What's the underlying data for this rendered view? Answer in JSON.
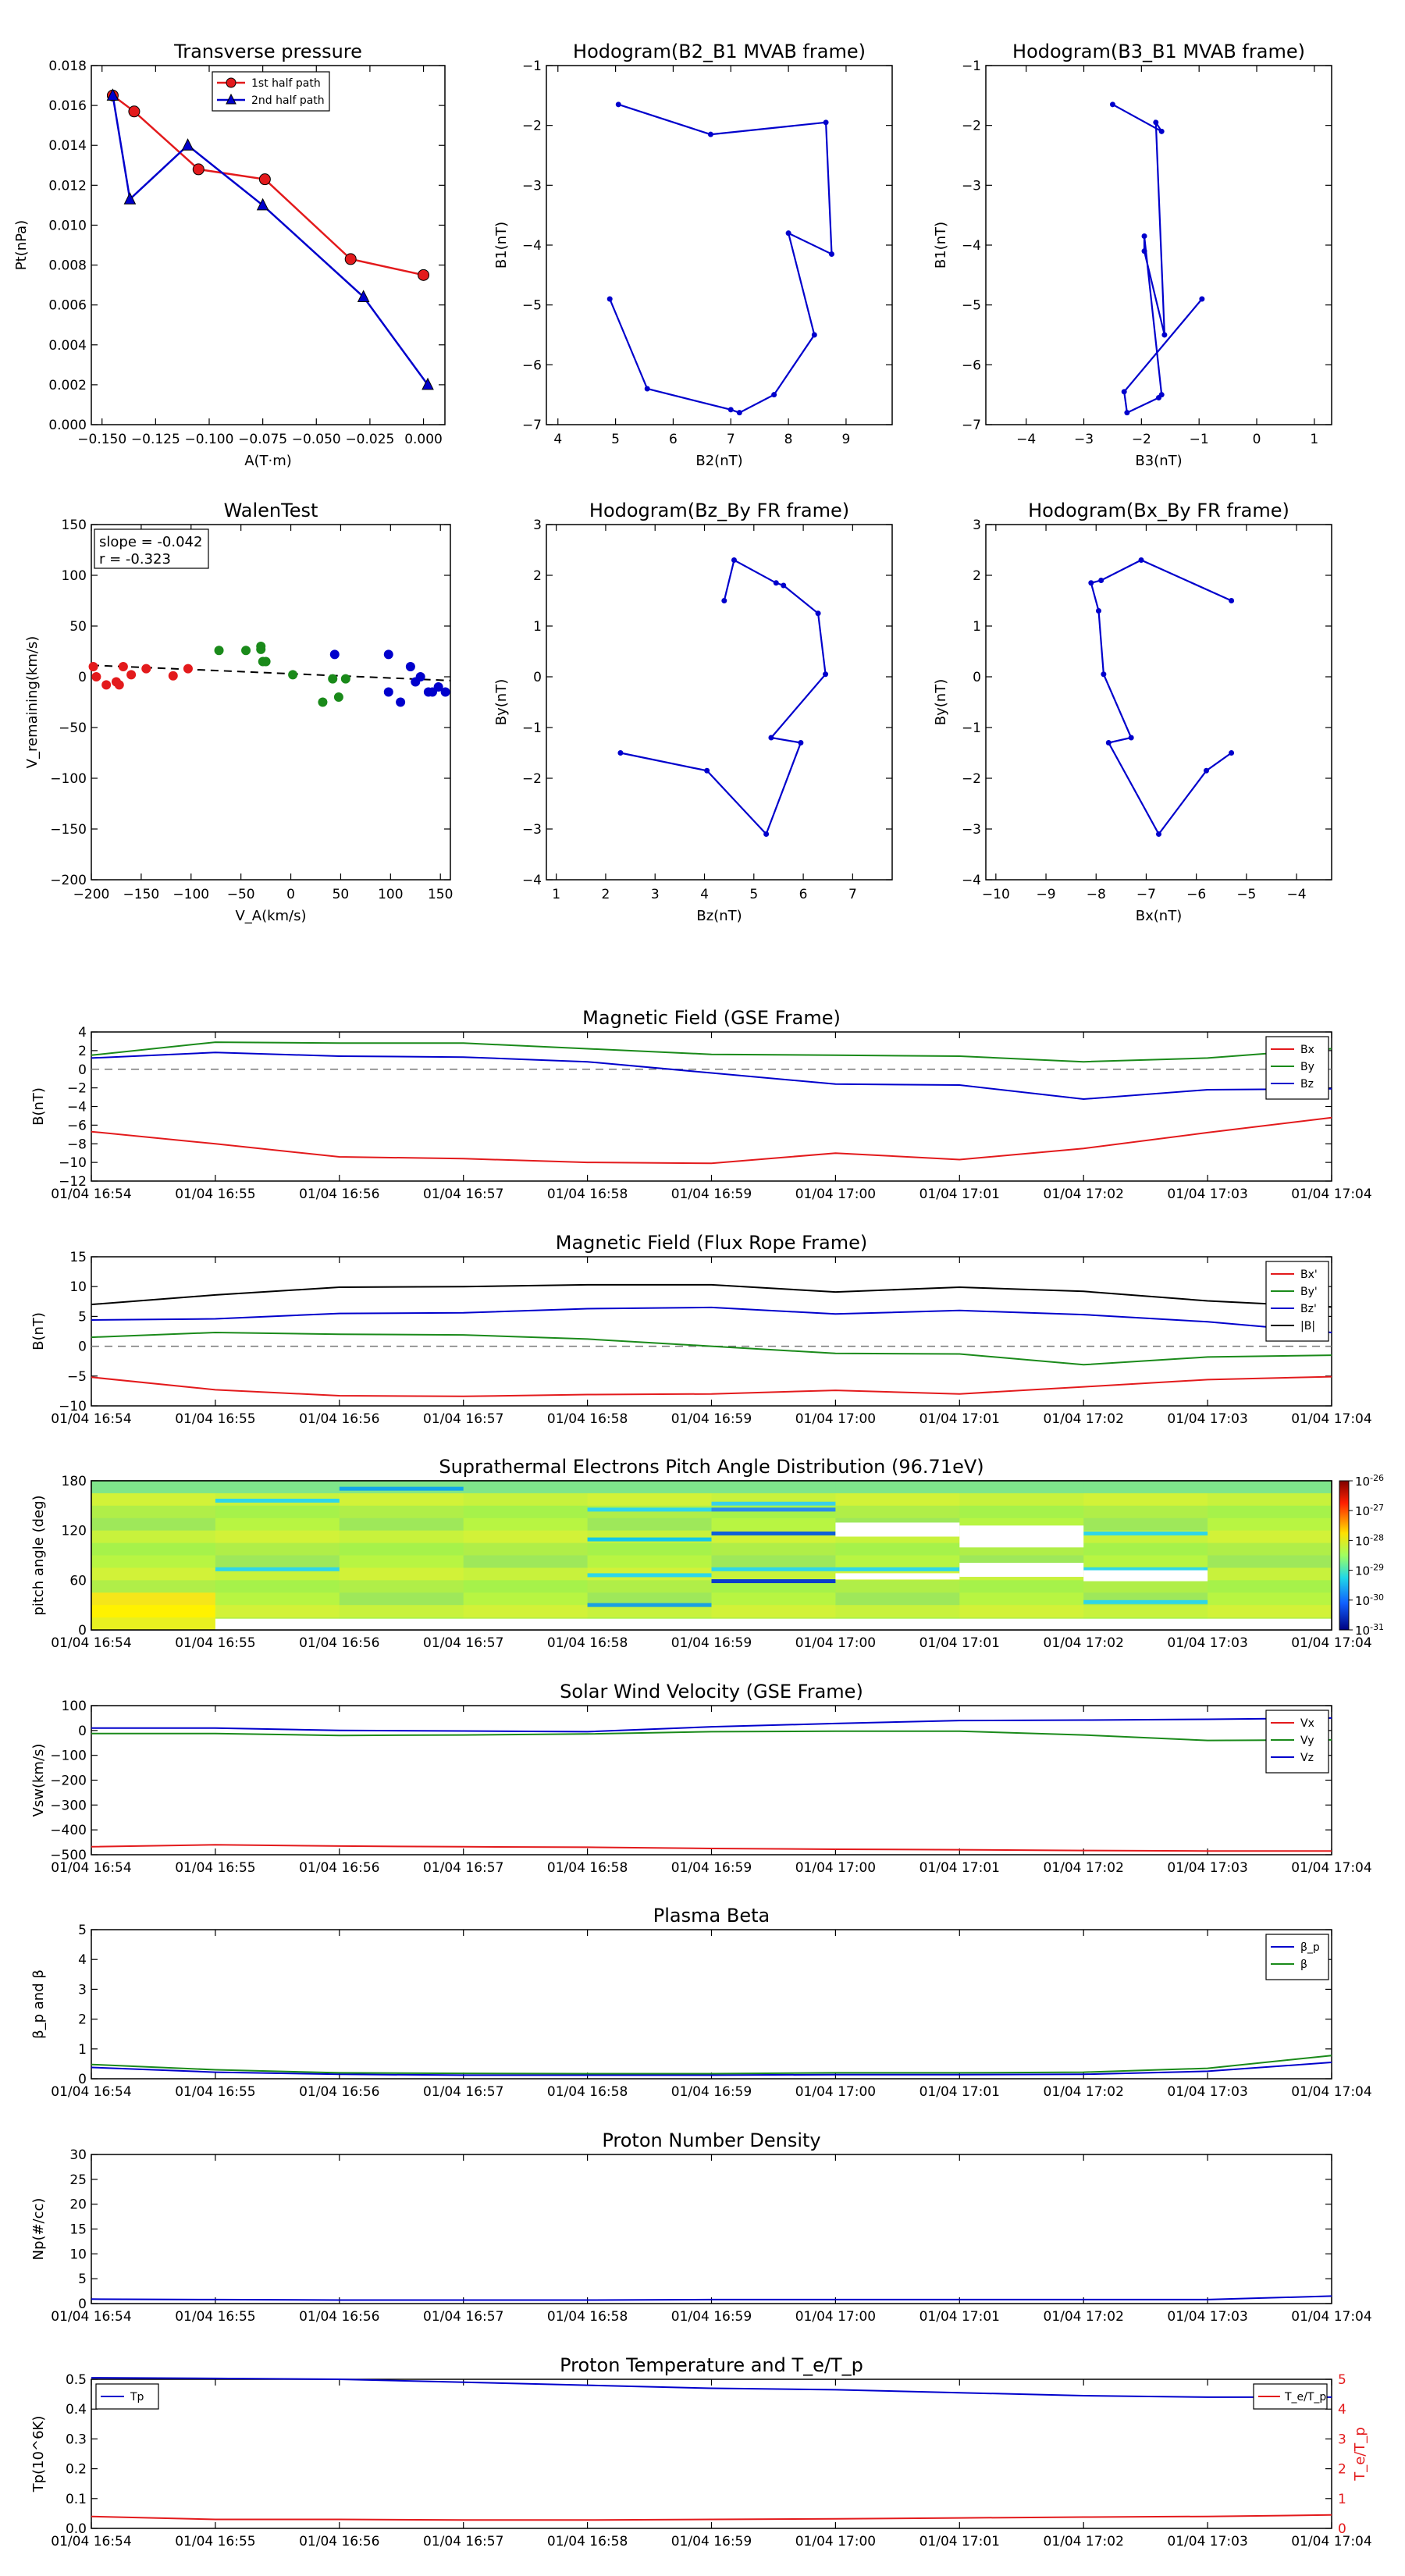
{
  "time_ticks": [
    "01/04 16:54",
    "01/04 16:55",
    "01/04 16:56",
    "01/04 16:57",
    "01/04 16:58",
    "01/04 16:59",
    "01/04 17:00",
    "01/04 17:01",
    "01/04 17:02",
    "01/04 17:03",
    "01/04 17:04"
  ],
  "chart_data": [
    {
      "id": "tp",
      "type": "line",
      "title": "Transverse pressure",
      "xlabel": "A(T·m)",
      "ylabel": "Pt(nPa)",
      "xlim": [
        -0.155,
        0.01
      ],
      "ylim": [
        0,
        0.018
      ],
      "xticks": [
        -0.15,
        -0.125,
        -0.1,
        -0.075,
        -0.05,
        -0.025,
        0
      ],
      "xtick_labels": [
        "−0.150",
        "−0.125",
        "−0.100",
        "−0.075",
        "−0.050",
        "−0.025",
        "0.000"
      ],
      "yticks": [
        0,
        0.002,
        0.004,
        0.006,
        0.008,
        0.01,
        0.012,
        0.014,
        0.016,
        0.018
      ],
      "ytick_labels": [
        "0.000",
        "0.002",
        "0.004",
        "0.006",
        "0.008",
        "0.010",
        "0.012",
        "0.014",
        "0.016",
        "0.018"
      ],
      "legend": "upper center",
      "series": [
        {
          "name": "1st half path",
          "color": "#e31a1c",
          "marker": "circle",
          "x": [
            -0.145,
            -0.135,
            -0.105,
            -0.074,
            -0.034,
            0.0
          ],
          "y": [
            0.0165,
            0.0157,
            0.0128,
            0.0123,
            0.0083,
            0.0075
          ]
        },
        {
          "name": "2nd half path",
          "color": "#0000cc",
          "marker": "triangle",
          "x": [
            -0.145,
            -0.137,
            -0.11,
            -0.075,
            -0.028,
            0.002
          ],
          "y": [
            0.0165,
            0.0113,
            0.014,
            0.011,
            0.0064,
            0.002
          ]
        }
      ]
    },
    {
      "id": "h1",
      "type": "line",
      "title": "Hodogram(B2_B1 MVAB frame)",
      "xlabel": "B2(nT)",
      "ylabel": "B1(nT)",
      "xlim": [
        3.8,
        9.8
      ],
      "ylim": [
        -7,
        -1
      ],
      "xticks": [
        4,
        5,
        6,
        7,
        8,
        9
      ],
      "xtick_labels": [
        "4",
        "5",
        "6",
        "7",
        "8",
        "9"
      ],
      "yticks": [
        -7,
        -6,
        -5,
        -4,
        -3,
        -2,
        -1
      ],
      "ytick_labels": [
        "−7",
        "−6",
        "−5",
        "−4",
        "−3",
        "−2",
        "−1"
      ],
      "series": [
        {
          "color": "#0000cc",
          "x": [
            5.05,
            6.65,
            8.65,
            8.75,
            8.0,
            8.45,
            7.75,
            7.15,
            7.0,
            5.55,
            4.9
          ],
          "y": [
            -1.65,
            -2.15,
            -1.95,
            -4.15,
            -3.8,
            -5.5,
            -6.5,
            -6.8,
            -6.75,
            -6.4,
            -4.9
          ]
        }
      ]
    },
    {
      "id": "h2",
      "type": "line",
      "title": "Hodogram(B3_B1 MVAB frame)",
      "xlabel": "B3(nT)",
      "ylabel": "B1(nT)",
      "xlim": [
        -4.7,
        1.3
      ],
      "ylim": [
        -7,
        -1
      ],
      "xticks": [
        -4,
        -3,
        -2,
        -1,
        0,
        1
      ],
      "xtick_labels": [
        "−4",
        "−3",
        "−2",
        "−1",
        "0",
        "1"
      ],
      "yticks": [
        -7,
        -6,
        -5,
        -4,
        -3,
        -2,
        -1
      ],
      "ytick_labels": [
        "−7",
        "−6",
        "−5",
        "−4",
        "−3",
        "−2",
        "−1"
      ],
      "series": [
        {
          "color": "#0000cc",
          "x": [
            -2.5,
            -1.65,
            -1.75,
            -1.6,
            -1.95,
            -1.95,
            -1.65,
            -1.7,
            -2.25,
            -2.3,
            -0.95
          ],
          "y": [
            -1.65,
            -2.1,
            -1.95,
            -5.5,
            -4.1,
            -3.85,
            -6.5,
            -6.55,
            -6.8,
            -6.45,
            -4.9
          ]
        }
      ]
    },
    {
      "id": "walen",
      "type": "scatter",
      "title": "WalenTest",
      "xlabel": "V_A(km/s)",
      "ylabel": "V_remaining(km/s)",
      "xlim": [
        -200,
        160
      ],
      "ylim": [
        -200,
        150
      ],
      "xticks": [
        -200,
        -150,
        -100,
        -50,
        0,
        50,
        100,
        150
      ],
      "xtick_labels": [
        "−200",
        "−150",
        "−100",
        "−50",
        "0",
        "50",
        "100",
        "150"
      ],
      "yticks": [
        -200,
        -150,
        -100,
        -50,
        0,
        50,
        100,
        150
      ],
      "ytick_labels": [
        "−200",
        "−150",
        "−100",
        "−50",
        "0",
        "50",
        "100",
        "150"
      ],
      "annotation": [
        "slope = -0.042",
        "r = -0.323"
      ],
      "fit_line": {
        "slope": -0.042,
        "intercept": 3
      },
      "series": [
        {
          "color": "#e31a1c",
          "x": [
            -198,
            -195,
            -185,
            -175,
            -172,
            -168,
            -160,
            -145,
            -118,
            -103
          ],
          "y": [
            10,
            0,
            -8,
            -5,
            -8,
            10,
            2,
            8,
            1,
            8
          ]
        },
        {
          "color": "#1a8a1a",
          "x": [
            -72,
            -45,
            -30,
            -30,
            -28,
            -25,
            2,
            32,
            42,
            48,
            55
          ],
          "y": [
            26,
            26,
            27,
            30,
            15,
            15,
            2,
            -25,
            -2,
            -20,
            -2
          ]
        },
        {
          "color": "#0000cc",
          "x": [
            44,
            98,
            98,
            110,
            120,
            125,
            130,
            138,
            142,
            148,
            155
          ],
          "y": [
            22,
            22,
            -15,
            -25,
            10,
            -5,
            0,
            -15,
            -15,
            -10,
            -15
          ]
        }
      ]
    },
    {
      "id": "h3",
      "type": "line",
      "title": "Hodogram(Bz_By FR frame)",
      "xlabel": "Bz(nT)",
      "ylabel": "By(nT)",
      "xlim": [
        0.8,
        7.8
      ],
      "ylim": [
        -4,
        3
      ],
      "xticks": [
        1,
        2,
        3,
        4,
        5,
        6,
        7
      ],
      "xtick_labels": [
        "1",
        "2",
        "3",
        "4",
        "5",
        "6",
        "7"
      ],
      "yticks": [
        -4,
        -3,
        -2,
        -1,
        0,
        1,
        2,
        3
      ],
      "ytick_labels": [
        "−4",
        "−3",
        "−2",
        "−1",
        "0",
        "1",
        "2",
        "3"
      ],
      "series": [
        {
          "color": "#0000cc",
          "x": [
            4.4,
            4.6,
            5.45,
            5.6,
            6.3,
            6.45,
            5.35,
            5.95,
            5.25,
            4.05,
            2.3
          ],
          "y": [
            1.5,
            2.3,
            1.85,
            1.8,
            1.25,
            0.05,
            -1.2,
            -1.3,
            -3.1,
            -1.85,
            -1.5
          ]
        }
      ]
    },
    {
      "id": "h4",
      "type": "line",
      "title": "Hodogram(Bx_By FR frame)",
      "xlabel": "Bx(nT)",
      "ylabel": "By(nT)",
      "xlim": [
        -10.2,
        -3.3
      ],
      "ylim": [
        -4,
        3
      ],
      "xticks": [
        -10,
        -9,
        -8,
        -7,
        -6,
        -5,
        -4
      ],
      "xtick_labels": [
        "−10",
        "−9",
        "−8",
        "−7",
        "−6",
        "−5",
        "−4"
      ],
      "yticks": [
        -4,
        -3,
        -2,
        -1,
        0,
        1,
        2,
        3
      ],
      "ytick_labels": [
        "−4",
        "−3",
        "−2",
        "−1",
        "0",
        "1",
        "2",
        "3"
      ],
      "series": [
        {
          "color": "#0000cc",
          "x": [
            -5.3,
            -7.1,
            -7.9,
            -8.1,
            -7.95,
            -7.85,
            -7.3,
            -7.75,
            -6.75,
            -5.8,
            -5.3
          ],
          "y": [
            1.5,
            2.3,
            1.9,
            1.85,
            1.3,
            0.05,
            -1.2,
            -1.3,
            -3.1,
            -1.85,
            -1.5
          ]
        }
      ]
    },
    {
      "id": "bgse",
      "type": "line",
      "title": "Magnetic Field (GSE Frame)",
      "ylabel": "B(nT)",
      "ylim": [
        -12,
        4
      ],
      "yticks": [
        -12,
        -10,
        -8,
        -6,
        -4,
        -2,
        0,
        2,
        4
      ],
      "ytick_labels": [
        "−12",
        "−10",
        "−8",
        "−6",
        "−4",
        "−2",
        "0",
        "2",
        "4"
      ],
      "zero_line": true,
      "legend": "right",
      "series": [
        {
          "name": "Bx",
          "color": "#e31a1c",
          "values": [
            -6.7,
            -8,
            -9.4,
            -9.6,
            -10,
            -10.1,
            -9,
            -9.7,
            -8.5,
            -6.8,
            -5.2
          ]
        },
        {
          "name": "By",
          "color": "#1a8a1a",
          "values": [
            1.5,
            2.9,
            2.8,
            2.8,
            2.2,
            1.6,
            1.5,
            1.4,
            0.8,
            1.2,
            2.2
          ]
        },
        {
          "name": "Bz",
          "color": "#0000cc",
          "values": [
            1.2,
            1.8,
            1.4,
            1.3,
            0.8,
            -0.4,
            -1.6,
            -1.7,
            -3.2,
            -2.2,
            -2.1
          ]
        }
      ]
    },
    {
      "id": "bfr",
      "type": "line",
      "title": "Magnetic Field (Flux Rope Frame)",
      "ylabel": "B(nT)",
      "ylim": [
        -10,
        15
      ],
      "yticks": [
        -10,
        -5,
        0,
        5,
        10,
        15
      ],
      "ytick_labels": [
        "−10",
        "−5",
        "0",
        "5",
        "10",
        "15"
      ],
      "zero_line": true,
      "legend": "right",
      "series": [
        {
          "name": "Bx'",
          "color": "#e31a1c",
          "values": [
            -5.2,
            -7.3,
            -8.3,
            -8.4,
            -8.1,
            -8,
            -7.4,
            -8,
            -6.8,
            -5.6,
            -5.1
          ]
        },
        {
          "name": "By'",
          "color": "#1a8a1a",
          "values": [
            1.5,
            2.3,
            2,
            1.9,
            1.2,
            0,
            -1.2,
            -1.3,
            -3.1,
            -1.8,
            -1.5
          ]
        },
        {
          "name": "Bz'",
          "color": "#0000cc",
          "values": [
            4.4,
            4.6,
            5.5,
            5.6,
            6.3,
            6.5,
            5.4,
            6,
            5.3,
            4.1,
            2.3
          ]
        },
        {
          "name": "|B|",
          "color": "#000000",
          "values": [
            7,
            8.6,
            9.9,
            10,
            10.3,
            10.3,
            9.1,
            9.9,
            9.2,
            7.6,
            6.6
          ]
        }
      ]
    },
    {
      "id": "pad",
      "type": "heatmap",
      "title": "Suprathermal Electrons Pitch Angle Distribution (96.71eV)",
      "ylabel": "pitch angle (deg)",
      "ylim": [
        0,
        180
      ],
      "yticks": [
        0,
        60,
        120,
        180
      ],
      "ytick_labels": [
        "0",
        "60",
        "120",
        "180"
      ],
      "colorbar_labels": [
        "10^-26",
        "10^-27",
        "10^-28",
        "10^-29",
        "10^-30",
        "10^-31"
      ]
    },
    {
      "id": "vsw",
      "type": "line",
      "title": "Solar Wind Velocity (GSE Frame)",
      "ylabel": "Vsw(km/s)",
      "ylim": [
        -500,
        100
      ],
      "yticks": [
        -500,
        -400,
        -300,
        -200,
        -100,
        0,
        100
      ],
      "ytick_labels": [
        "−500",
        "−400",
        "−300",
        "−200",
        "−100",
        "0",
        "100"
      ],
      "legend": "right",
      "series": [
        {
          "name": "Vx",
          "color": "#e31a1c",
          "values": [
            -468,
            -460,
            -465,
            -468,
            -470,
            -475,
            -478,
            -480,
            -483,
            -485,
            -485
          ]
        },
        {
          "name": "Vy",
          "color": "#1a8a1a",
          "values": [
            -12,
            -12,
            -20,
            -18,
            -14,
            -5,
            -3,
            -3,
            -18,
            -40,
            -38
          ]
        },
        {
          "name": "Vz",
          "color": "#0000cc",
          "values": [
            10,
            10,
            0,
            -2,
            -5,
            15,
            28,
            40,
            42,
            45,
            50
          ]
        }
      ]
    },
    {
      "id": "beta",
      "type": "line",
      "title": "Plasma Beta",
      "ylabel": "β_p and β",
      "ylim": [
        0,
        5
      ],
      "yticks": [
        0,
        1,
        2,
        3,
        4,
        5
      ],
      "ytick_labels": [
        "0",
        "1",
        "2",
        "3",
        "4",
        "5"
      ],
      "legend": "right",
      "series": [
        {
          "name": "β_p",
          "color": "#0000cc",
          "values": [
            0.38,
            0.22,
            0.15,
            0.12,
            0.12,
            0.12,
            0.14,
            0.14,
            0.15,
            0.25,
            0.55
          ]
        },
        {
          "name": "β",
          "color": "#1a8a1a",
          "values": [
            0.48,
            0.3,
            0.2,
            0.18,
            0.17,
            0.17,
            0.2,
            0.2,
            0.22,
            0.35,
            0.78
          ]
        }
      ]
    },
    {
      "id": "np",
      "type": "line",
      "title": "Proton Number Density",
      "ylabel": "Np(#/cc)",
      "ylim": [
        0,
        30
      ],
      "yticks": [
        0,
        5,
        10,
        15,
        20,
        25,
        30
      ],
      "ytick_labels": [
        "0",
        "5",
        "10",
        "15",
        "20",
        "25",
        "30"
      ],
      "series": [
        {
          "name": "Np",
          "color": "#0000cc",
          "values": [
            0.9,
            0.8,
            0.7,
            0.7,
            0.7,
            0.8,
            0.8,
            0.8,
            0.8,
            0.8,
            1.5
          ]
        }
      ]
    },
    {
      "id": "temp",
      "type": "line",
      "title": "Proton Temperature and T_e/T_p",
      "ylabel": "Tp(10^6K)",
      "ylabel2": "T_e/T_p",
      "ylim": [
        0,
        0.5
      ],
      "yticks": [
        0,
        0.1,
        0.2,
        0.3,
        0.4,
        0.5
      ],
      "ytick_labels": [
        "0.0",
        "0.1",
        "0.2",
        "0.3",
        "0.4",
        "0.5"
      ],
      "ylim2": [
        0,
        5
      ],
      "yticks2": [
        0,
        1,
        2,
        3,
        4,
        5
      ],
      "ytick_labels2": [
        "0",
        "1",
        "2",
        "3",
        "4",
        "5"
      ],
      "series": [
        {
          "name": "Tp",
          "color": "#0000cc",
          "axis": "left",
          "values": [
            0.505,
            0.503,
            0.5,
            0.49,
            0.48,
            0.47,
            0.465,
            0.455,
            0.445,
            0.44,
            0.44
          ]
        },
        {
          "name": "T_e/T_p",
          "color": "#e31a1c",
          "axis": "right",
          "values": [
            0.4,
            0.3,
            0.3,
            0.28,
            0.28,
            0.3,
            0.32,
            0.35,
            0.38,
            0.4,
            0.45
          ]
        }
      ]
    }
  ]
}
